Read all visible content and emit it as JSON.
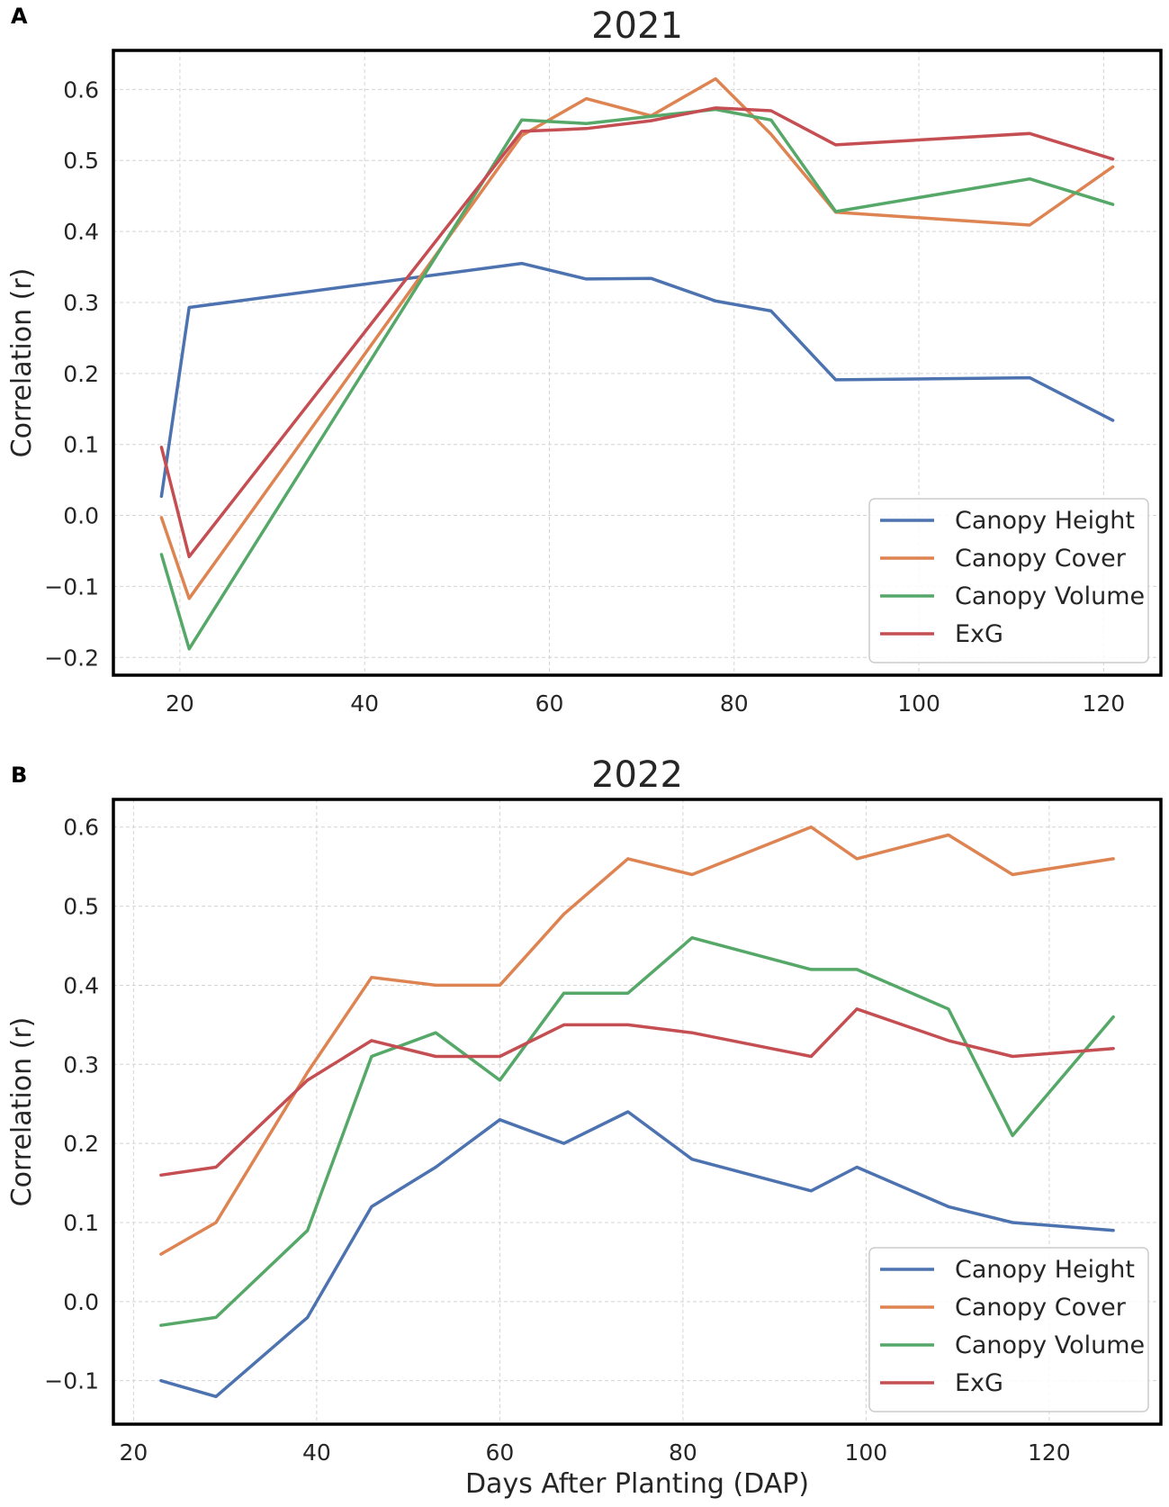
{
  "chart_data": [
    {
      "panel": "A",
      "type": "line",
      "title": "2021",
      "xlabel": "",
      "ylabel": "Correlation (r)",
      "xlim": [
        12.8,
        126.2
      ],
      "ylim": [
        -0.225,
        0.655
      ],
      "xticks": [
        20,
        40,
        60,
        80,
        100,
        120
      ],
      "xtick_labels": [
        "20",
        "40",
        "60",
        "80",
        "100",
        "120"
      ],
      "yticks": [
        -0.2,
        -0.1,
        0.0,
        0.1,
        0.2,
        0.3,
        0.4,
        0.5,
        0.6
      ],
      "ytick_labels": [
        "−0.2",
        "−0.1",
        "0.0",
        "0.1",
        "0.2",
        "0.3",
        "0.4",
        "0.5",
        "0.6"
      ],
      "grid": true,
      "legend_position": "lower-right",
      "series": [
        {
          "name": "Canopy Height",
          "color": "#4c72b0",
          "x": [
            18,
            21,
            57,
            64,
            71,
            78,
            84,
            91,
            112,
            121
          ],
          "y": [
            0.027,
            0.293,
            0.355,
            0.333,
            0.334,
            0.302,
            0.288,
            0.191,
            0.194,
            0.134
          ]
        },
        {
          "name": "Canopy Cover",
          "color": "#dd8452",
          "x": [
            18,
            21,
            57,
            64,
            71,
            78,
            84,
            91,
            112,
            121
          ],
          "y": [
            -0.003,
            -0.117,
            0.535,
            0.587,
            0.563,
            0.615,
            0.537,
            0.427,
            0.409,
            0.491
          ]
        },
        {
          "name": "Canopy Volume",
          "color": "#55a868",
          "x": [
            18,
            21,
            57,
            64,
            71,
            78,
            84,
            91,
            112,
            121
          ],
          "y": [
            -0.055,
            -0.188,
            0.557,
            0.552,
            0.562,
            0.572,
            0.557,
            0.428,
            0.474,
            0.438
          ]
        },
        {
          "name": "ExG",
          "color": "#c44e52",
          "x": [
            18,
            21,
            57,
            64,
            71,
            78,
            84,
            91,
            112,
            121
          ],
          "y": [
            0.096,
            -0.058,
            0.541,
            0.545,
            0.556,
            0.574,
            0.57,
            0.522,
            0.538,
            0.502
          ]
        }
      ]
    },
    {
      "panel": "B",
      "type": "line",
      "title": "2022",
      "xlabel": "Days After Planting (DAP)",
      "ylabel": "Correlation (r)",
      "xlim": [
        17.8,
        132.2
      ],
      "ylim": [
        -0.155,
        0.635
      ],
      "xticks": [
        20,
        40,
        60,
        80,
        100,
        120
      ],
      "xtick_labels": [
        "20",
        "40",
        "60",
        "80",
        "100",
        "120"
      ],
      "yticks": [
        -0.1,
        0.0,
        0.1,
        0.2,
        0.3,
        0.4,
        0.5,
        0.6
      ],
      "ytick_labels": [
        "−0.1",
        "0.0",
        "0.1",
        "0.2",
        "0.3",
        "0.4",
        "0.5",
        "0.6"
      ],
      "grid": true,
      "legend_position": "lower-right",
      "series": [
        {
          "name": "Canopy Height",
          "color": "#4c72b0",
          "x": [
            23,
            29,
            39,
            46,
            53,
            60,
            67,
            74,
            81,
            94,
            99,
            109,
            116,
            127
          ],
          "y": [
            -0.1,
            -0.12,
            -0.02,
            0.12,
            0.17,
            0.23,
            0.2,
            0.24,
            0.18,
            0.14,
            0.17,
            0.12,
            0.1,
            0.09
          ]
        },
        {
          "name": "Canopy Cover",
          "color": "#dd8452",
          "x": [
            23,
            29,
            39,
            46,
            53,
            60,
            67,
            74,
            81,
            94,
            99,
            109,
            116,
            127
          ],
          "y": [
            0.06,
            0.1,
            0.29,
            0.41,
            0.4,
            0.4,
            0.49,
            0.56,
            0.54,
            0.6,
            0.56,
            0.59,
            0.54,
            0.56
          ]
        },
        {
          "name": "Canopy Volume",
          "color": "#55a868",
          "x": [
            23,
            29,
            39,
            46,
            53,
            60,
            67,
            74,
            81,
            94,
            99,
            109,
            116,
            127
          ],
          "y": [
            -0.03,
            -0.02,
            0.09,
            0.31,
            0.34,
            0.28,
            0.39,
            0.39,
            0.46,
            0.42,
            0.42,
            0.37,
            0.21,
            0.36
          ]
        },
        {
          "name": "ExG",
          "color": "#c44e52",
          "x": [
            23,
            29,
            39,
            46,
            53,
            60,
            67,
            74,
            81,
            94,
            99,
            109,
            116,
            127
          ],
          "y": [
            0.16,
            0.17,
            0.28,
            0.33,
            0.31,
            0.31,
            0.35,
            0.35,
            0.34,
            0.31,
            0.37,
            0.33,
            0.31,
            0.32
          ]
        }
      ]
    }
  ]
}
